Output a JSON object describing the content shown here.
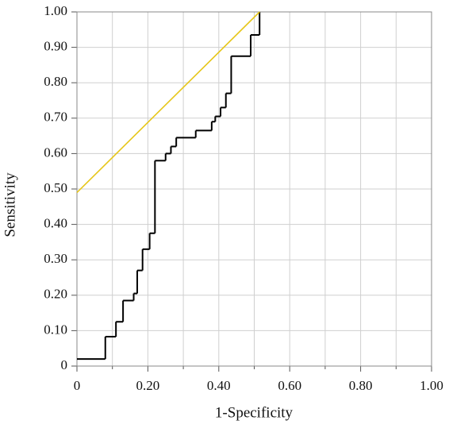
{
  "chart_data": {
    "type": "step",
    "xlabel": "1-Specificity",
    "ylabel": "Sensitivity",
    "xlim": [
      0,
      1
    ],
    "ylim": [
      0,
      1
    ],
    "xticks": [
      0,
      {
        "value": 0.2,
        "label": "0.20"
      },
      {
        "value": 0.4,
        "label": "0.40"
      },
      {
        "value": 0.6,
        "label": "0.60"
      },
      {
        "value": 0.8,
        "label": "0.80"
      },
      {
        "value": 1,
        "label": "1.00"
      }
    ],
    "xminorticks": [
      0.1,
      0.3,
      0.5,
      0.7,
      0.9
    ],
    "yticks": [
      0,
      {
        "value": 0.1,
        "label": "0.10"
      },
      {
        "value": 0.2,
        "label": "0.20"
      },
      {
        "value": 0.3,
        "label": "0.30"
      },
      {
        "value": 0.4,
        "label": "0.40"
      },
      {
        "value": 0.5,
        "label": "0.50"
      },
      {
        "value": 0.6,
        "label": "0.60"
      },
      {
        "value": 0.7,
        "label": "0.70"
      },
      {
        "value": 0.8,
        "label": "0.80"
      },
      {
        "value": 0.9,
        "label": "0.90"
      },
      {
        "value": 1,
        "label": "1.00"
      }
    ],
    "grid": true,
    "series": [
      {
        "style": "steps-post",
        "color": "#000000",
        "x": [
          0,
          0.08,
          0.11,
          0.13,
          0.16,
          0.17,
          0.185,
          0.205,
          0.22,
          0.25,
          0.265,
          0.28,
          0.335,
          0.38,
          0.39,
          0.405,
          0.42,
          0.435,
          0.49,
          0.515
        ],
        "values": [
          0.02,
          0.083,
          0.125,
          0.185,
          0.205,
          0.27,
          0.33,
          0.375,
          0.58,
          0.6,
          0.62,
          0.645,
          0.665,
          0.69,
          0.705,
          0.73,
          0.77,
          0.875,
          0.935,
          1.0
        ]
      },
      {
        "style": "line",
        "color": "#e6c619",
        "x": [
          0,
          0.515
        ],
        "values": [
          0.49,
          1.0
        ]
      }
    ]
  }
}
